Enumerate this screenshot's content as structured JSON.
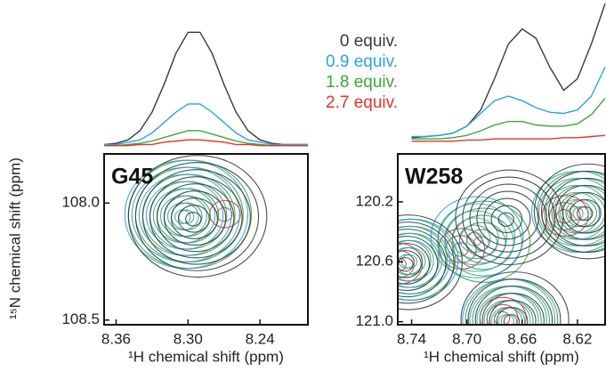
{
  "chart_data": [
    {
      "type": "contour",
      "label": "G45",
      "xlabel": "¹H chemical shift (ppm)",
      "ylabel": "¹⁵N chemical shift (ppm)",
      "xlim": [
        8.37,
        8.2
      ],
      "ylim": [
        108.52,
        107.79
      ],
      "xticks": [
        8.36,
        {
          "value": 8.3,
          "label": "8.30"
        },
        8.24
      ],
      "yticks": [
        {
          "value": 108,
          "label": "108.0"
        },
        108.5
      ],
      "x": [
        8.37,
        8.36,
        8.35,
        8.34,
        8.33,
        8.32,
        8.31,
        8.3,
        8.29,
        8.28,
        8.27,
        8.26,
        8.25,
        8.24,
        8.23,
        8.22,
        8.21,
        8.2
      ],
      "series": [
        {
          "name": "0 equiv.",
          "color": "#3a3a3a",
          "values": [
            2,
            3,
            6,
            14,
            30,
            54,
            81,
            99,
            99,
            81,
            54,
            30,
            14,
            6,
            3,
            2,
            2,
            2
          ],
          "peak_x": [
            8.296
          ],
          "peak_y": [
            108.07
          ],
          "levels": 9
        },
        {
          "name": "0.9 equiv.",
          "color": "#29a3e0",
          "values": [
            2,
            2,
            4,
            6,
            12,
            21,
            30,
            37,
            37,
            30,
            21,
            12,
            6,
            4,
            2,
            2,
            2,
            2
          ],
          "peak_x": [
            8.305
          ],
          "peak_y": [
            108.06
          ],
          "levels": 8
        },
        {
          "name": "1.8 equiv.",
          "color": "#3aa835",
          "values": [
            1,
            1,
            2,
            3,
            5,
            8,
            11,
            14,
            14,
            11,
            8,
            5,
            3,
            2,
            1,
            1,
            1,
            1
          ],
          "peak_x": [
            8.302
          ],
          "peak_y": [
            108.06
          ],
          "levels": 8
        },
        {
          "name": "2.7 equiv.",
          "color": "#e8312a",
          "values": [
            1,
            1,
            1,
            2,
            2,
            4,
            5,
            6,
            6,
            5,
            4,
            2,
            2,
            1,
            1,
            1,
            1,
            1
          ],
          "peak_x": [
            8.27
          ],
          "peak_y": [
            108.05
          ],
          "levels": 2
        }
      ]
    },
    {
      "type": "contour",
      "label": "W258",
      "xlabel": "¹H chemical shift (ppm)",
      "xlim": [
        8.75,
        8.6
      ],
      "ylim": [
        121.02,
        119.88
      ],
      "xticks": [
        8.74,
        {
          "value": 8.7,
          "label": "8.70"
        },
        8.66,
        8.62
      ],
      "yticks": [
        120.2,
        120.6,
        {
          "value": 121,
          "label": "121.0"
        }
      ],
      "x": [
        8.74,
        8.73,
        8.72,
        8.71,
        8.7,
        8.69,
        8.68,
        8.67,
        8.66,
        8.65,
        8.64,
        8.63,
        8.62,
        8.61,
        8.6
      ],
      "series": [
        {
          "color": "#3a3a3a",
          "values": [
            4,
            5,
            6,
            8,
            14,
            28,
            55,
            85,
            98,
            90,
            65,
            45,
            55,
            85,
            120
          ],
          "peak_x": [
            8.745,
            8.672,
            8.615,
            8.668
          ],
          "peak_y": [
            120.62,
            120.32,
            120.28,
            121.0
          ],
          "levels": 7
        },
        {
          "color": "#29a3e0",
          "values": [
            5,
            5,
            6,
            8,
            14,
            25,
            36,
            40,
            36,
            30,
            26,
            25,
            28,
            40,
            65
          ],
          "peak_x": [
            8.742,
            8.695,
            8.622,
            8.672
          ],
          "peak_y": [
            120.6,
            120.45,
            120.28,
            121.0
          ],
          "levels": 6
        },
        {
          "color": "#3aa835",
          "values": [
            3,
            3,
            3,
            4,
            6,
            10,
            15,
            18,
            18,
            15,
            14,
            14,
            16,
            24,
            38
          ],
          "peak_x": [
            8.744,
            8.69,
            8.618,
            8.67
          ],
          "peak_y": [
            120.6,
            120.48,
            120.28,
            121.0
          ],
          "levels": 6
        },
        {
          "color": "#e8312a",
          "values": [
            1,
            1,
            1,
            1,
            2,
            2,
            3,
            3,
            3,
            3,
            3,
            4,
            4,
            5,
            6
          ],
          "peak_x": [
            8.75,
            8.705,
            8.63,
            8.675
          ],
          "peak_y": [
            120.62,
            120.52,
            120.3,
            120.98
          ],
          "levels": 3
        }
      ]
    }
  ]
}
